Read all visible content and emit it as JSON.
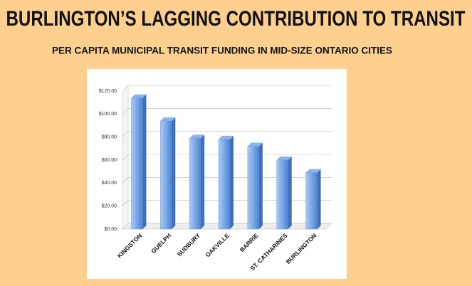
{
  "chart_data": {
    "type": "bar",
    "title": "BURLINGTON’S LAGGING CONTRIBUTION TO TRANSIT",
    "subtitle": "PER CAPITA MUNICIPAL TRANSIT FUNDING IN MID-SIZE ONTARIO CITIES",
    "categories": [
      "KINGSTON",
      "GUELPH",
      "SUDBURY",
      "OAKVILLE",
      "BARRIE",
      "ST. CATHARINES",
      "BURLINGTON"
    ],
    "values": [
      114,
      94,
      79,
      78,
      72,
      60,
      49
    ],
    "color": "#5b8fd6",
    "ylim": [
      0,
      120
    ],
    "yticks": [
      {
        "value": 0,
        "label": "$0.00"
      },
      {
        "value": 20,
        "label": "$20.00"
      },
      {
        "value": 40,
        "label": "$40.00"
      },
      {
        "value": 60,
        "label": "$60.00"
      },
      {
        "value": 80,
        "label": "$80.00"
      },
      {
        "value": 100,
        "label": "$100.00"
      },
      {
        "value": 120,
        "label": "$120.00"
      }
    ],
    "grid": true
  }
}
